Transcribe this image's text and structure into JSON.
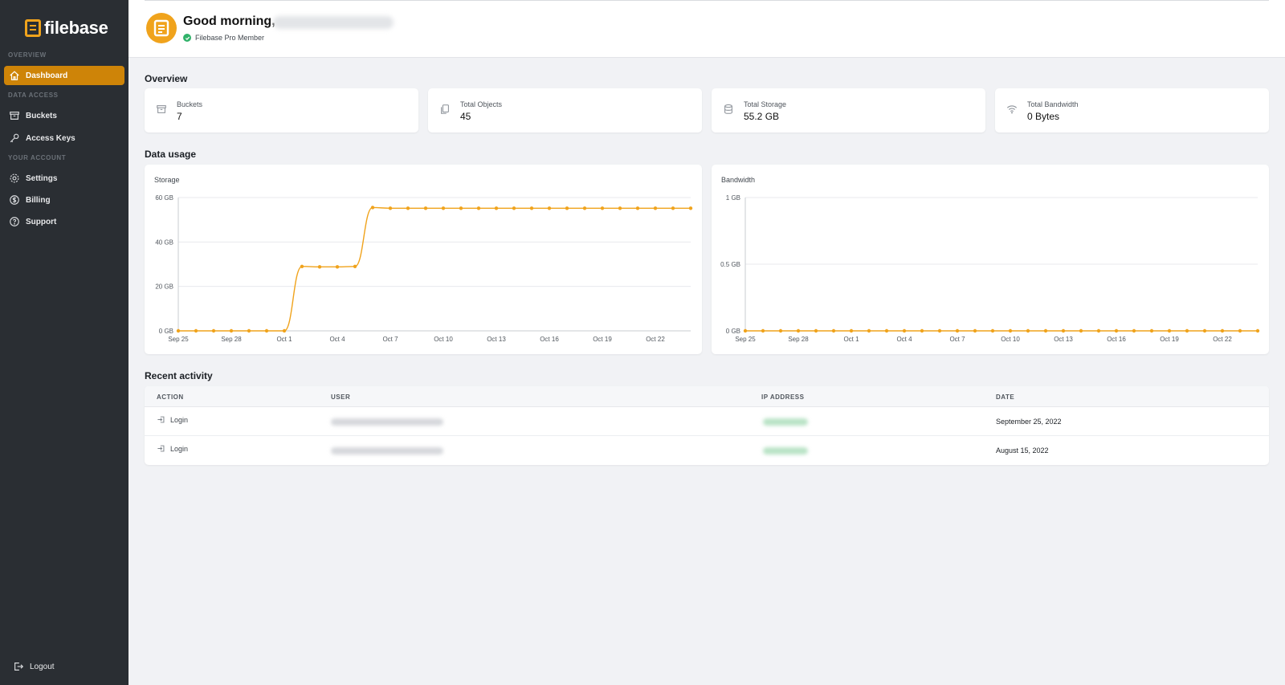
{
  "brand": {
    "name": "filebase",
    "accent": "#f0a31c",
    "sidebar_bg": "#2a2e33",
    "active_bg": "#ce8408"
  },
  "sidebar": {
    "sections": [
      {
        "label": "OVERVIEW"
      },
      {
        "label": "DATA ACCESS"
      },
      {
        "label": "YOUR ACCOUNT"
      }
    ],
    "items": [
      {
        "label": "Dashboard",
        "icon": "home-icon",
        "active": true
      },
      {
        "label": "Buckets",
        "icon": "archive-icon"
      },
      {
        "label": "Access Keys",
        "icon": "key-icon"
      },
      {
        "label": "Settings",
        "icon": "gear-icon"
      },
      {
        "label": "Billing",
        "icon": "dollar-circle-icon"
      },
      {
        "label": "Support",
        "icon": "help-circle-icon"
      }
    ],
    "logout": {
      "label": "Logout",
      "icon": "logout-icon"
    }
  },
  "header": {
    "greeting": "Good morning,",
    "membership": "Filebase Pro Member"
  },
  "overview": {
    "title": "Overview",
    "stats": [
      {
        "label": "Buckets",
        "value": "7",
        "icon": "archive-icon"
      },
      {
        "label": "Total Objects",
        "value": "45",
        "icon": "copy-icon"
      },
      {
        "label": "Total Storage",
        "value": "55.2 GB",
        "icon": "database-icon"
      },
      {
        "label": "Total Bandwidth",
        "value": "0 Bytes",
        "icon": "wifi-icon"
      }
    ]
  },
  "data_usage": {
    "title": "Data usage"
  },
  "chart_data": [
    {
      "type": "line",
      "title": "Storage",
      "color": "#f0a31c",
      "y_ticks": [
        "0 GB",
        "20 GB",
        "40 GB",
        "60 GB"
      ],
      "ylim": [
        0,
        60
      ],
      "x_ticks": [
        "Sep 25",
        "Sep 28",
        "Oct 1",
        "Oct 4",
        "Oct 7",
        "Oct 10",
        "Oct 13",
        "Oct 16",
        "Oct 19",
        "Oct 22"
      ],
      "x": [
        "Sep 25",
        "Sep 26",
        "Sep 27",
        "Sep 28",
        "Sep 29",
        "Sep 30",
        "Oct 1",
        "Oct 2",
        "Oct 3",
        "Oct 4",
        "Oct 5",
        "Oct 6",
        "Oct 7",
        "Oct 8",
        "Oct 9",
        "Oct 10",
        "Oct 11",
        "Oct 12",
        "Oct 13",
        "Oct 14",
        "Oct 15",
        "Oct 16",
        "Oct 17",
        "Oct 18",
        "Oct 19",
        "Oct 20",
        "Oct 21",
        "Oct 22",
        "Oct 23",
        "Oct 24"
      ],
      "values": [
        0,
        0,
        0,
        0,
        0,
        0,
        0,
        29,
        28.8,
        28.8,
        29,
        55.5,
        55.2,
        55.2,
        55.2,
        55.2,
        55.2,
        55.2,
        55.2,
        55.2,
        55.2,
        55.2,
        55.2,
        55.2,
        55.2,
        55.2,
        55.2,
        55.2,
        55.2,
        55.2
      ]
    },
    {
      "type": "line",
      "title": "Bandwidth",
      "color": "#f0a31c",
      "y_ticks": [
        "0 GB",
        "0.5 GB",
        "1 GB"
      ],
      "ylim": [
        0,
        1
      ],
      "x_ticks": [
        "Sep 25",
        "Sep 28",
        "Oct 1",
        "Oct 4",
        "Oct 7",
        "Oct 10",
        "Oct 13",
        "Oct 16",
        "Oct 19",
        "Oct 22"
      ],
      "x": [
        "Sep 25",
        "Sep 26",
        "Sep 27",
        "Sep 28",
        "Sep 29",
        "Sep 30",
        "Oct 1",
        "Oct 2",
        "Oct 3",
        "Oct 4",
        "Oct 5",
        "Oct 6",
        "Oct 7",
        "Oct 8",
        "Oct 9",
        "Oct 10",
        "Oct 11",
        "Oct 12",
        "Oct 13",
        "Oct 14",
        "Oct 15",
        "Oct 16",
        "Oct 17",
        "Oct 18",
        "Oct 19",
        "Oct 20",
        "Oct 21",
        "Oct 22",
        "Oct 23",
        "Oct 24"
      ],
      "values": [
        0,
        0,
        0,
        0,
        0,
        0,
        0,
        0,
        0,
        0,
        0,
        0,
        0,
        0,
        0,
        0,
        0,
        0,
        0,
        0,
        0,
        0,
        0,
        0,
        0,
        0,
        0,
        0,
        0,
        0
      ]
    }
  ],
  "activity": {
    "title": "Recent activity",
    "columns": [
      "ACTION",
      "USER",
      "IP ADDRESS",
      "DATE"
    ],
    "rows": [
      {
        "action": "Login",
        "date": "September 25, 2022"
      },
      {
        "action": "Login",
        "date": "August 15, 2022"
      }
    ]
  }
}
